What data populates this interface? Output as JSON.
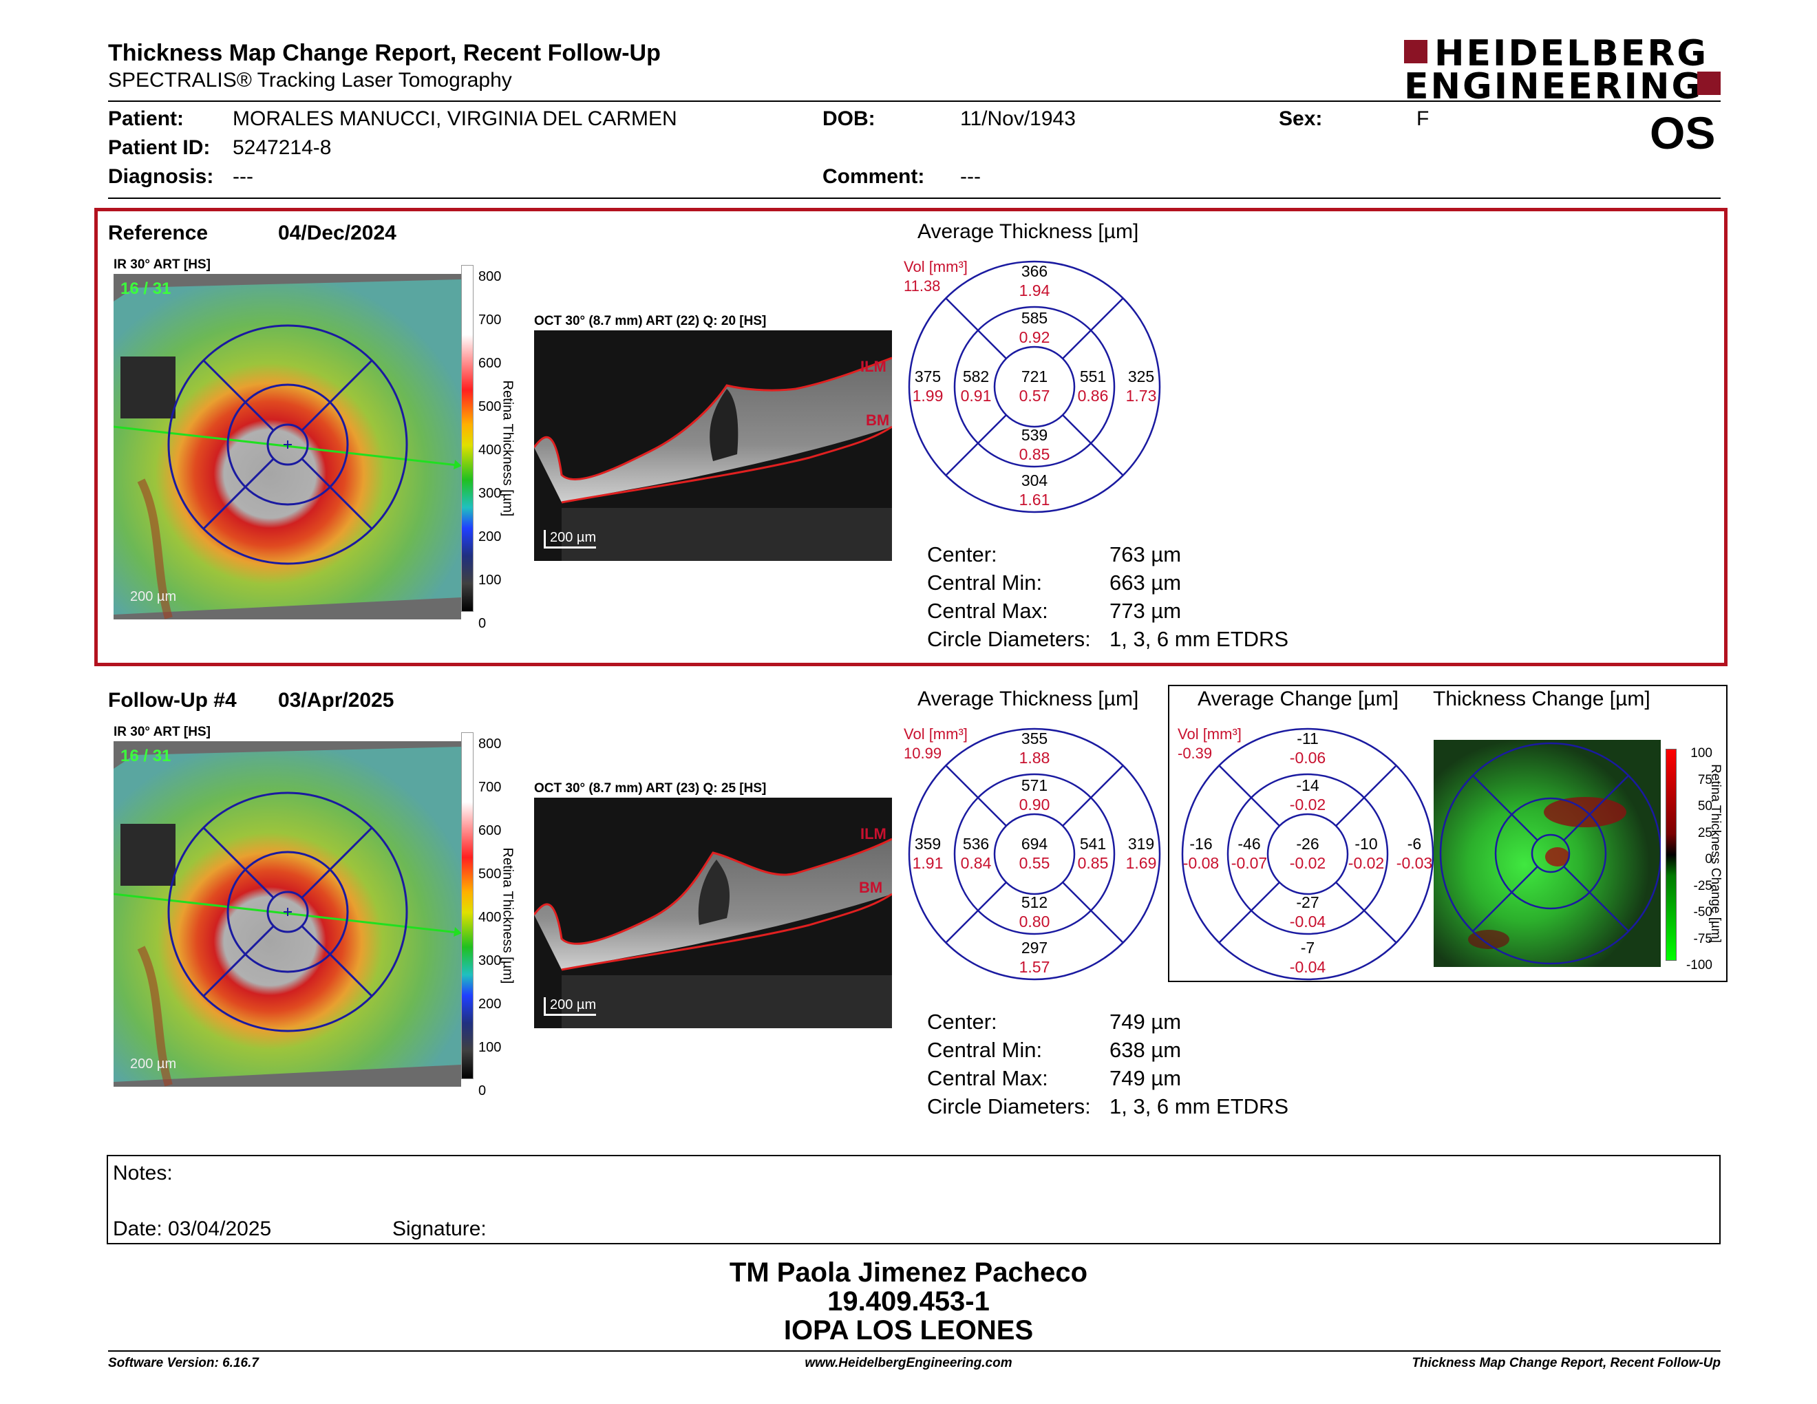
{
  "header": {
    "title": "Thickness Map Change Report, Recent Follow-Up",
    "subtitle": "SPECTRALIS® Tracking Laser Tomography",
    "logo_line1": "HEIDELBERG",
    "logo_line2": "ENGINEERING",
    "eye": "OS"
  },
  "patient": {
    "name_label": "Patient:",
    "name": "MORALES MANUCCI, VIRGINIA DEL CARMEN",
    "dob_label": "DOB:",
    "dob": "11/Nov/1943",
    "sex_label": "Sex:",
    "sex": "F",
    "id_label": "Patient ID:",
    "id": "5247214-8",
    "diagnosis_label": "Diagnosis:",
    "diagnosis": "---",
    "comment_label": "Comment:",
    "comment": "---"
  },
  "reference": {
    "label": "Reference",
    "date": "04/Dec/2024",
    "ir_label": "IR 30° ART [HS]",
    "frame": "16 / 31",
    "scale": "200 µm",
    "oct_label": "OCT 30° (8.7 mm) ART (22) Q: 20 [HS]",
    "oct_scale": "200 µm",
    "ilm": "ILM",
    "bm": "BM",
    "colorbar_ticks": [
      "800",
      "700",
      "600",
      "500",
      "400",
      "300",
      "200",
      "100",
      "0"
    ],
    "colorbar_title": "Retina Thickness [µm]",
    "avg_title": "Average Thickness [µm]",
    "vol_label": "Vol [mm³]",
    "vol_total": "11.38",
    "etdrs": {
      "center": [
        "721",
        "0.57"
      ],
      "inner_sup": [
        "585",
        "0.92"
      ],
      "inner_nas": [
        "551",
        "0.86"
      ],
      "inner_inf": [
        "539",
        "0.85"
      ],
      "inner_tmp": [
        "582",
        "0.91"
      ],
      "outer_sup": [
        "366",
        "1.94"
      ],
      "outer_nas": [
        "325",
        "1.73"
      ],
      "outer_inf": [
        "304",
        "1.61"
      ],
      "outer_tmp": [
        "375",
        "1.99"
      ]
    },
    "stats": [
      {
        "label": "Center:",
        "value": "763 µm"
      },
      {
        "label": "Central Min:",
        "value": "663 µm"
      },
      {
        "label": "Central Max:",
        "value": "773 µm"
      },
      {
        "label": "Circle Diameters:",
        "value": "1, 3, 6 mm ETDRS"
      }
    ]
  },
  "followup": {
    "label": "Follow-Up #4",
    "date": "03/Apr/2025",
    "ir_label": "IR 30° ART [HS]",
    "frame": "16 / 31",
    "scale": "200 µm",
    "oct_label": "OCT 30° (8.7 mm) ART (23) Q: 25 [HS]",
    "oct_scale": "200 µm",
    "ilm": "ILM",
    "bm": "BM",
    "colorbar_ticks": [
      "800",
      "700",
      "600",
      "500",
      "400",
      "300",
      "200",
      "100",
      "0"
    ],
    "colorbar_title": "Retina Thickness [µm]",
    "avg_title": "Average Thickness [µm]",
    "vol_label": "Vol [mm³]",
    "vol_total": "10.99",
    "etdrs": {
      "center": [
        "694",
        "0.55"
      ],
      "inner_sup": [
        "571",
        "0.90"
      ],
      "inner_nas": [
        "541",
        "0.85"
      ],
      "inner_inf": [
        "512",
        "0.80"
      ],
      "inner_tmp": [
        "536",
        "0.84"
      ],
      "outer_sup": [
        "355",
        "1.88"
      ],
      "outer_nas": [
        "319",
        "1.69"
      ],
      "outer_inf": [
        "297",
        "1.57"
      ],
      "outer_tmp": [
        "359",
        "1.91"
      ]
    },
    "stats": [
      {
        "label": "Center:",
        "value": "749 µm"
      },
      {
        "label": "Central Min:",
        "value": "638 µm"
      },
      {
        "label": "Central Max:",
        "value": "749 µm"
      },
      {
        "label": "Circle Diameters:",
        "value": "1, 3, 6 mm ETDRS"
      }
    ]
  },
  "change": {
    "avg_title": "Average Change [µm]",
    "map_title": "Thickness Change [µm]",
    "vol_label": "Vol [mm³]",
    "vol_total": "-0.39",
    "etdrs": {
      "center": [
        "-26",
        "-0.02"
      ],
      "inner_sup": [
        "-14",
        "-0.02"
      ],
      "inner_nas": [
        "-10",
        "-0.02"
      ],
      "inner_inf": [
        "-27",
        "-0.04"
      ],
      "inner_tmp": [
        "-46",
        "-0.07"
      ],
      "outer_sup": [
        "-11",
        "-0.06"
      ],
      "outer_nas": [
        "-6",
        "-0.03"
      ],
      "outer_inf": [
        "-7",
        "-0.04"
      ],
      "outer_tmp": [
        "-16",
        "-0.08"
      ]
    },
    "colorbar_ticks": [
      "100",
      "75",
      "50",
      "25",
      "0",
      "-25",
      "-50",
      "-75",
      "-100"
    ],
    "colorbar_title": "Retina Thickness Change [µm]"
  },
  "notes": {
    "notes_label": "Notes:",
    "date_label": "Date: 03/04/2025",
    "signature_label": "Signature:"
  },
  "signer": {
    "name": "TM Paola Jimenez Pacheco",
    "id": "19.409.453-1",
    "org": "IOPA LOS LEONES"
  },
  "footer": {
    "version": "Software Version: 6.16.7",
    "url": "www.HeidelbergEngineering.com",
    "report": "Thickness Map Change Report, Recent Follow-Up"
  },
  "colors": {
    "accent_red": "#b3121f",
    "value_red": "#c8102e",
    "circle_blue": "#1a1aa0"
  }
}
